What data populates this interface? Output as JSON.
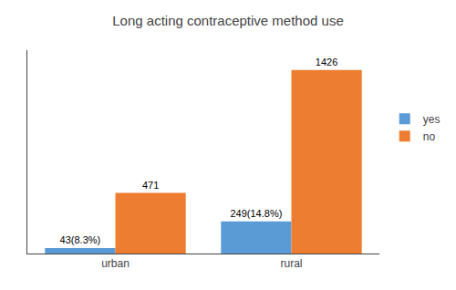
{
  "chart_data": {
    "type": "bar",
    "title": "Long acting contraceptive method use",
    "categories": [
      "urban",
      "rural"
    ],
    "series": [
      {
        "name": "yes",
        "color": "#5b9bd5",
        "values": [
          43,
          249
        ],
        "value_labels": [
          "43(8.3%)",
          "249(14.8%)"
        ]
      },
      {
        "name": "no",
        "color": "#ed7d31",
        "values": [
          471,
          1426
        ]
      }
    ],
    "ylim": [
      0,
      1580
    ],
    "yticks": [],
    "tick_labels": "x",
    "data_labels": true,
    "legend": "right"
  }
}
